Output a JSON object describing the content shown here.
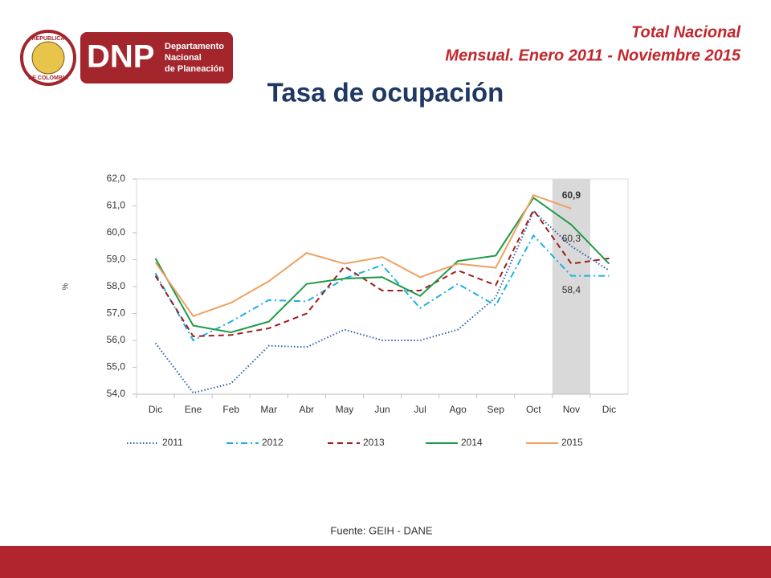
{
  "logo": {
    "name": "DNP",
    "lines": [
      "Departamento",
      "Nacional",
      "de Planeación"
    ],
    "seal_top": "REPUBLICA",
    "seal_bottom": "DE COLOMBIA"
  },
  "header": {
    "line1": "Total Nacional",
    "line2": "Mensual. Enero 2011 - Noviembre 2015"
  },
  "footer": {
    "source": "Fuente: GEIH - DANE"
  },
  "chart_data": {
    "type": "line",
    "title": "Tasa de ocupación",
    "y_label": "%",
    "categories": [
      "Dic",
      "Ene",
      "Feb",
      "Mar",
      "Abr",
      "May",
      "Jun",
      "Jul",
      "Ago",
      "Sep",
      "Oct",
      "Nov",
      "Dic"
    ],
    "highlight": "Nov",
    "ylim": [
      54,
      62
    ],
    "yticks": [
      {
        "value": 54,
        "label": "54,0"
      },
      {
        "value": 55,
        "label": "55,0"
      },
      {
        "value": 56,
        "label": "56,0"
      },
      {
        "value": 57,
        "label": "57,0"
      },
      {
        "value": 58,
        "label": "58,0"
      },
      {
        "value": 59,
        "label": "59,0"
      },
      {
        "value": 60,
        "label": "60,0"
      },
      {
        "value": 61,
        "label": "61,0"
      },
      {
        "value": 62,
        "label": "62,0"
      }
    ],
    "grid": false,
    "legend": "bottom",
    "series": [
      {
        "name": "2011",
        "color": "#2e5fa8",
        "style": "dotted",
        "values": [
          55.9,
          54.05,
          54.4,
          55.8,
          55.75,
          56.4,
          56.0,
          56.0,
          56.4,
          57.6,
          60.8,
          59.5,
          58.6
        ]
      },
      {
        "name": "2012",
        "color": "#1fb0e0",
        "style": "dashdot",
        "values": [
          58.5,
          56.0,
          56.7,
          57.5,
          57.45,
          58.3,
          58.8,
          57.2,
          58.1,
          57.3,
          59.9,
          58.4,
          58.4
        ],
        "value_labels": [
          null,
          null,
          null,
          null,
          null,
          null,
          null,
          null,
          null,
          null,
          null,
          "58,4",
          null
        ]
      },
      {
        "name": "2013",
        "color": "#a01d1d",
        "style": "dashed",
        "values": [
          58.4,
          56.15,
          56.2,
          56.45,
          57.0,
          58.75,
          57.85,
          57.85,
          58.6,
          58.05,
          60.85,
          58.85,
          59.05
        ]
      },
      {
        "name": "2014",
        "color": "#1e9a48",
        "style": "solid",
        "values": [
          59.05,
          56.55,
          56.3,
          56.7,
          58.1,
          58.3,
          58.35,
          57.65,
          58.95,
          59.15,
          61.3,
          60.3,
          58.85
        ],
        "value_labels": [
          null,
          null,
          null,
          null,
          null,
          null,
          null,
          null,
          null,
          null,
          null,
          "60,3",
          null
        ]
      },
      {
        "name": "2015",
        "color": "#f0a060",
        "style": "solid",
        "values": [
          58.9,
          56.9,
          57.4,
          58.2,
          59.25,
          58.85,
          59.1,
          58.35,
          58.85,
          58.7,
          61.4,
          60.9,
          null
        ],
        "value_labels": [
          null,
          null,
          null,
          null,
          null,
          null,
          null,
          null,
          null,
          null,
          null,
          "60,9",
          null
        ]
      }
    ]
  }
}
